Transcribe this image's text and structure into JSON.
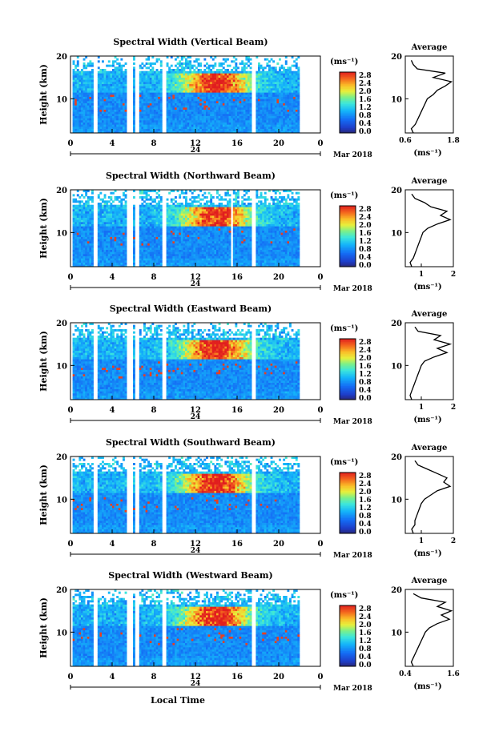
{
  "figure": {
    "time_axis_label": "Local Time",
    "month_year": "Mar 2018",
    "date_label": "24",
    "height_label": "Height (km)",
    "unit_label": "(ms⁻¹)",
    "average_title": "Average",
    "average_unit": "(ms⁻¹)"
  },
  "chart_data": [
    {
      "type": "heatmap",
      "title": "Spectral Width (Vertical Beam)",
      "xlabel": "",
      "ylabel": "Height (km)",
      "xlim": [
        0,
        24
      ],
      "ylim": [
        2,
        20
      ],
      "x_ticks": [
        "0",
        "4",
        "8",
        "12",
        "16",
        "20",
        "0"
      ],
      "y_ticks": [
        "10",
        "20"
      ],
      "colorbar": {
        "range": [
          0.0,
          2.8
        ],
        "ticks": [
          "2.8",
          "2.4",
          "2.0",
          "1.6",
          "1.2",
          "0.8",
          "0.4",
          "0.0"
        ]
      },
      "data_gaps_hours": [
        [
          0,
          0.3
        ],
        [
          2.3,
          2.5
        ],
        [
          5.5,
          6.0
        ],
        [
          6.2,
          6.5
        ],
        [
          8.8,
          9.2
        ],
        [
          17.5,
          17.8
        ],
        [
          22,
          24
        ]
      ],
      "average_profile": {
        "xlim": [
          0.6,
          1.8
        ],
        "x_ticks": [
          "0.6",
          "1.8"
        ],
        "y_ticks": [
          "10",
          "20"
        ],
        "height_km": [
          2,
          3,
          4,
          5,
          6,
          7,
          8,
          9,
          10,
          11,
          12,
          13,
          14,
          15,
          16,
          17,
          18,
          19
        ],
        "width_ms": [
          0.8,
          0.75,
          0.85,
          0.9,
          0.95,
          1.0,
          1.05,
          1.1,
          1.15,
          1.3,
          1.4,
          1.6,
          1.75,
          1.3,
          1.6,
          0.9,
          0.8,
          0.75
        ]
      }
    },
    {
      "type": "heatmap",
      "title": "Spectral Width (Northward Beam)",
      "xlabel": "",
      "ylabel": "Height (km)",
      "xlim": [
        0,
        24
      ],
      "ylim": [
        2,
        20
      ],
      "x_ticks": [
        "0",
        "4",
        "8",
        "12",
        "16",
        "20",
        "0"
      ],
      "y_ticks": [
        "10",
        "20"
      ],
      "colorbar": {
        "range": [
          0.0,
          2.8
        ],
        "ticks": [
          "2.8",
          "2.4",
          "2.0",
          "1.6",
          "1.2",
          "0.8",
          "0.4",
          "0.0"
        ]
      },
      "data_gaps_hours": [
        [
          0,
          0.3
        ],
        [
          2.3,
          2.5
        ],
        [
          5.5,
          6.0
        ],
        [
          6.2,
          6.5
        ],
        [
          8.8,
          9.2
        ],
        [
          15.4,
          15.6
        ],
        [
          17.5,
          17.8
        ],
        [
          22,
          24
        ]
      ],
      "average_profile": {
        "xlim": [
          0.5,
          2.0
        ],
        "x_ticks": [
          "1",
          "2"
        ],
        "y_ticks": [
          "10",
          "20"
        ],
        "height_km": [
          2,
          3,
          4,
          5,
          6,
          7,
          8,
          9,
          10,
          11,
          12,
          13,
          14,
          15,
          16,
          17,
          18,
          19
        ],
        "width_ms": [
          0.7,
          0.65,
          0.75,
          0.8,
          0.85,
          0.9,
          0.95,
          1.0,
          1.05,
          1.2,
          1.5,
          1.9,
          1.6,
          1.8,
          1.3,
          1.1,
          0.8,
          0.7
        ]
      }
    },
    {
      "type": "heatmap",
      "title": "Spectral Width (Eastward Beam)",
      "xlabel": "",
      "ylabel": "Height (km)",
      "xlim": [
        0,
        24
      ],
      "ylim": [
        2,
        20
      ],
      "x_ticks": [
        "0",
        "4",
        "8",
        "12",
        "16",
        "20",
        "0"
      ],
      "y_ticks": [
        "10",
        "20"
      ],
      "colorbar": {
        "range": [
          0.0,
          2.8
        ],
        "ticks": [
          "2.8",
          "2.4",
          "2.0",
          "1.6",
          "1.2",
          "0.8",
          "0.4",
          "0.0"
        ]
      },
      "data_gaps_hours": [
        [
          0,
          0.3
        ],
        [
          2.3,
          2.5
        ],
        [
          5.5,
          6.0
        ],
        [
          6.2,
          6.5
        ],
        [
          8.8,
          9.2
        ],
        [
          17.5,
          17.8
        ],
        [
          22,
          24
        ]
      ],
      "average_profile": {
        "xlim": [
          0.5,
          2.0
        ],
        "x_ticks": [
          "1",
          "2"
        ],
        "y_ticks": [
          "10",
          "20"
        ],
        "height_km": [
          2,
          3,
          4,
          5,
          6,
          7,
          8,
          9,
          10,
          11,
          12,
          13,
          14,
          15,
          16,
          17,
          18,
          19
        ],
        "width_ms": [
          0.7,
          0.65,
          0.7,
          0.75,
          0.8,
          0.85,
          0.9,
          0.95,
          1.0,
          1.1,
          1.4,
          1.8,
          1.5,
          1.9,
          1.4,
          1.6,
          0.9,
          0.8
        ]
      }
    },
    {
      "type": "heatmap",
      "title": "Spectral Width (Southward Beam)",
      "xlabel": "",
      "ylabel": "Height (km)",
      "xlim": [
        0,
        24
      ],
      "ylim": [
        2,
        20
      ],
      "x_ticks": [
        "0",
        "4",
        "8",
        "12",
        "16",
        "20",
        "0"
      ],
      "y_ticks": [
        "10",
        "20"
      ],
      "colorbar": {
        "range": [
          0.0,
          2.8
        ],
        "ticks": [
          "2.8",
          "2.4",
          "2.0",
          "1.6",
          "1.2",
          "0.8",
          "0.4",
          "0.0"
        ]
      },
      "data_gaps_hours": [
        [
          0,
          0.3
        ],
        [
          2.3,
          2.5
        ],
        [
          5.5,
          6.0
        ],
        [
          6.2,
          6.5
        ],
        [
          8.8,
          9.2
        ],
        [
          17.5,
          17.8
        ],
        [
          22,
          24
        ]
      ],
      "average_profile": {
        "xlim": [
          0.5,
          2.0
        ],
        "x_ticks": [
          "1",
          "2"
        ],
        "y_ticks": [
          "10",
          "20"
        ],
        "height_km": [
          2,
          3,
          4,
          5,
          6,
          7,
          8,
          9,
          10,
          11,
          12,
          13,
          14,
          15,
          16,
          17,
          18,
          19
        ],
        "width_ms": [
          0.75,
          0.7,
          0.8,
          0.8,
          0.85,
          0.9,
          0.95,
          1.0,
          1.1,
          1.3,
          1.5,
          1.9,
          1.7,
          1.8,
          1.5,
          1.2,
          0.9,
          0.8
        ]
      }
    },
    {
      "type": "heatmap",
      "title": "Spectral Width (Westward Beam)",
      "xlabel": "Local Time",
      "ylabel": "Height (km)",
      "xlim": [
        0,
        24
      ],
      "ylim": [
        2,
        20
      ],
      "x_ticks": [
        "0",
        "4",
        "8",
        "12",
        "16",
        "20",
        "0"
      ],
      "y_ticks": [
        "10",
        "20"
      ],
      "colorbar": {
        "range": [
          0.0,
          2.8
        ],
        "ticks": [
          "2.8",
          "2.4",
          "2.0",
          "1.6",
          "1.2",
          "0.8",
          "0.4",
          "0.0"
        ]
      },
      "data_gaps_hours": [
        [
          0,
          0.3
        ],
        [
          2.3,
          2.5
        ],
        [
          5.5,
          6.0
        ],
        [
          6.2,
          6.5
        ],
        [
          8.8,
          9.2
        ],
        [
          17.5,
          17.8
        ],
        [
          22,
          24
        ]
      ],
      "average_profile": {
        "xlim": [
          0.4,
          1.6
        ],
        "x_ticks": [
          "0.4",
          "1.6"
        ],
        "y_ticks": [
          "10",
          "20"
        ],
        "height_km": [
          2,
          3,
          4,
          5,
          6,
          7,
          8,
          9,
          10,
          11,
          12,
          13,
          14,
          15,
          16,
          17,
          18,
          19
        ],
        "width_ms": [
          0.6,
          0.55,
          0.6,
          0.65,
          0.7,
          0.75,
          0.8,
          0.85,
          0.9,
          1.0,
          1.2,
          1.5,
          1.3,
          1.55,
          1.2,
          1.4,
          0.8,
          0.6
        ]
      }
    }
  ]
}
